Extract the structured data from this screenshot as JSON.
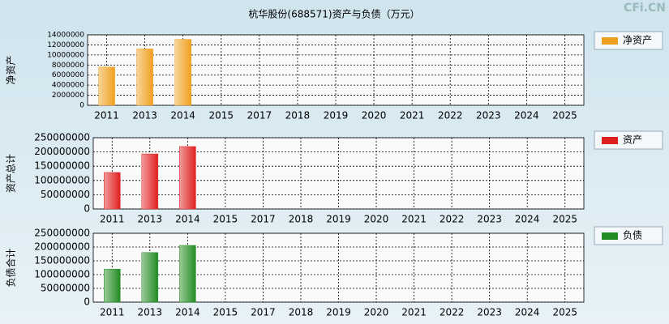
{
  "watermark": "CFi.CN",
  "chart_data": [
    {
      "type": "bar",
      "title": "杭华股份(688571)资产与负债（万元）",
      "ylabel": "净资产",
      "categories": [
        "2011",
        "2013",
        "2014",
        "2015",
        "2017",
        "2018",
        "2019",
        "2020",
        "2021",
        "2022",
        "2023",
        "2024",
        "2025"
      ],
      "series": [
        {
          "name": "净资产",
          "color": "#f0a020",
          "values": [
            7600000,
            11200000,
            13100000,
            0,
            0,
            0,
            0,
            0,
            0,
            0,
            0,
            0,
            0
          ]
        }
      ],
      "ylim": [
        0,
        14000000
      ],
      "yticks": [
        0,
        2000000,
        4000000,
        6000000,
        8000000,
        10000000,
        12000000,
        14000000
      ],
      "grid": true
    },
    {
      "type": "bar",
      "ylabel": "资产总计",
      "categories": [
        "2011",
        "2013",
        "2014",
        "2015",
        "2017",
        "2018",
        "2019",
        "2020",
        "2021",
        "2022",
        "2023",
        "2024",
        "2025"
      ],
      "series": [
        {
          "name": "资产",
          "color": "#e02020",
          "values": [
            128000000,
            193000000,
            219000000,
            0,
            0,
            0,
            0,
            0,
            0,
            0,
            0,
            0,
            0
          ]
        }
      ],
      "ylim": [
        0,
        250000000
      ],
      "yticks": [
        0,
        50000000,
        100000000,
        150000000,
        200000000,
        250000000
      ],
      "grid": true
    },
    {
      "type": "bar",
      "ylabel": "负债合计",
      "categories": [
        "2011",
        "2013",
        "2014",
        "2015",
        "2017",
        "2018",
        "2019",
        "2020",
        "2021",
        "2022",
        "2023",
        "2024",
        "2025"
      ],
      "series": [
        {
          "name": "负债",
          "color": "#228b22",
          "values": [
            120000000,
            180000000,
            206000000,
            0,
            0,
            0,
            0,
            0,
            0,
            0,
            0,
            0,
            0
          ]
        }
      ],
      "ylim": [
        0,
        250000000
      ],
      "yticks": [
        0,
        50000000,
        100000000,
        150000000,
        200000000,
        250000000
      ],
      "grid": true
    }
  ]
}
